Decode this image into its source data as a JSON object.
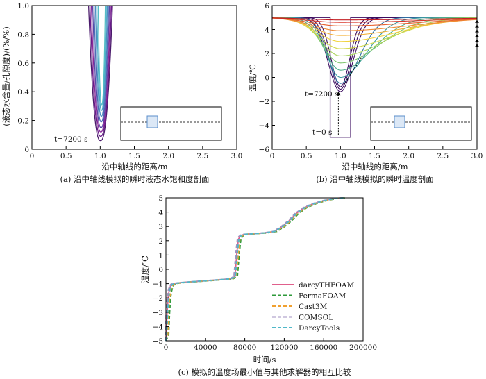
{
  "colors": {
    "sat_curves": [
      "#4a1a6b",
      "#6a1a8a",
      "#8a2a99",
      "#5a4aa8",
      "#4e6cb6",
      "#4a90c2",
      "#48a9c6",
      "#54bdc5"
    ],
    "temp_early": "#3a0a5e",
    "temp_mid": [
      "#2d6fa3",
      "#3a9aa0",
      "#4fb08a",
      "#7cc46a",
      "#a8d25a",
      "#d2d84a"
    ],
    "temp_late": [
      "#f0d23c",
      "#f4b23a",
      "#f08a34",
      "#e8602e",
      "#d8362a",
      "#c21f23"
    ],
    "arrow": "#000000",
    "inset_box": "#000000",
    "inset_square": "#5a8ecb",
    "darcyTHFOAM": "#e0608c",
    "PermaFOAM": "#2e9a3a",
    "Cast3M": "#f0a030",
    "COMSOL": "#a090c0",
    "DarcyTools": "#50b8c8"
  },
  "chart_data": [
    {
      "id": "a",
      "type": "line",
      "caption": "(a) 沿中轴线模拟的瞬时液态水饱和度剖面",
      "xlabel": "沿中轴线的距离/m",
      "ylabel": "(液态水含量/孔隙度)/(%/%)",
      "xlim": [
        0,
        3.0
      ],
      "ylim": [
        0,
        1.0
      ],
      "xticks": [
        0,
        0.5,
        1.0,
        1.5,
        2.0,
        2.5,
        3.0
      ],
      "xtick_labels": [
        "0",
        "0.5",
        "1.0",
        "1.5",
        "2.0",
        "2.5",
        "3.0"
      ],
      "yticks": [
        0,
        0.2,
        0.4,
        0.6,
        0.8,
        1.0
      ],
      "ytick_labels": [
        "0",
        "0.2",
        "0.4",
        "0.6",
        "0.8",
        "1.0"
      ],
      "annotation": "t=7200 s",
      "series_minima": [
        0.06,
        0.09,
        0.12,
        0.15,
        0.19,
        0.23,
        0.27,
        0.31
      ],
      "inset": true
    },
    {
      "id": "b",
      "type": "line",
      "caption": "(b) 沿中轴线模拟的瞬时温度剖面",
      "xlabel": "沿中轴线的距离/m",
      "ylabel": "温度/℃",
      "xlim": [
        0,
        3.0
      ],
      "ylim": [
        -6,
        6
      ],
      "xticks": [
        0,
        0.5,
        1.0,
        1.5,
        2.0,
        2.5,
        3.0
      ],
      "xtick_labels": [
        "0",
        "0.5",
        "1.0",
        "1.5",
        "2.0",
        "2.5",
        "3.0"
      ],
      "yticks": [
        -6,
        -4,
        -2,
        0,
        2,
        4,
        6
      ],
      "ytick_labels": [
        "−6",
        "−4",
        "−2",
        "0",
        "2",
        "4",
        "6"
      ],
      "annotations": [
        "t=7200 s",
        "t=0 s"
      ],
      "initial_profile": {
        "x": [
          0,
          0.85,
          0.85,
          1.15,
          1.15,
          3.0
        ],
        "y": [
          5,
          5,
          -5,
          -5,
          5,
          5
        ]
      },
      "early_minima": [
        -0.8,
        -1.0,
        -1.2
      ],
      "late_minima": [
        -0.5,
        0.0,
        0.6,
        1.2,
        1.8,
        2.4,
        3.0,
        3.5,
        3.9,
        4.3,
        4.6,
        4.8
      ],
      "inset": true
    },
    {
      "id": "c",
      "type": "line",
      "caption": "(c) 模拟的温度场最小值与其他求解器的相互比较",
      "xlabel": "时间/s",
      "ylabel": "温度/℃",
      "xlim": [
        0,
        200000
      ],
      "ylim": [
        -5,
        5
      ],
      "xticks": [
        0,
        40000,
        80000,
        120000,
        160000,
        200000
      ],
      "xtick_labels": [
        "0",
        "40000",
        "80000",
        "120000",
        "160000",
        "200000"
      ],
      "yticks": [
        -5,
        -4,
        -3,
        -2,
        -1,
        0,
        1,
        2,
        3,
        4,
        5
      ],
      "ytick_labels": [
        "−5",
        "−4",
        "−3",
        "−2",
        "−1",
        "0",
        "1",
        "2",
        "3",
        "4",
        "5"
      ],
      "legend_position": "lower-right",
      "x": [
        0,
        300,
        700,
        1200,
        2000,
        3000,
        4500,
        6000,
        8000,
        12000,
        20000,
        30000,
        40000,
        50000,
        60000,
        66000,
        70000,
        72000,
        73500,
        75000,
        77000,
        80000,
        90000,
        100000,
        110000,
        118000,
        125000,
        132000,
        140000,
        150000,
        160000,
        170000,
        180000
      ],
      "series": [
        {
          "name": "darcyTHFOAM",
          "style": "solid",
          "values": [
            -5,
            -4.6,
            -3.9,
            -3.1,
            -2.2,
            -1.6,
            -1.2,
            -1.05,
            -1.0,
            -0.95,
            -0.9,
            -0.85,
            -0.8,
            -0.75,
            -0.7,
            -0.65,
            -0.5,
            1.2,
            2.1,
            2.3,
            2.4,
            2.45,
            2.5,
            2.55,
            2.65,
            3.0,
            3.4,
            3.9,
            4.3,
            4.6,
            4.8,
            4.95,
            5.0
          ],
          "shift": 0
        },
        {
          "name": "PermaFOAM",
          "style": "dashed",
          "values": [
            -5,
            -4.6,
            -3.9,
            -3.1,
            -2.2,
            -1.6,
            -1.2,
            -1.05,
            -1.0,
            -0.95,
            -0.9,
            -0.85,
            -0.8,
            -0.75,
            -0.7,
            -0.65,
            -0.5,
            1.2,
            2.1,
            2.3,
            2.4,
            2.45,
            2.5,
            2.55,
            2.65,
            3.0,
            3.4,
            3.9,
            4.3,
            4.6,
            4.8,
            4.95,
            5.0
          ],
          "shift": 2500
        },
        {
          "name": "Cast3M",
          "style": "dashed",
          "values": [
            -5,
            -4.6,
            -3.9,
            -3.1,
            -2.2,
            -1.6,
            -1.2,
            -1.05,
            -1.0,
            -0.95,
            -0.9,
            -0.85,
            -0.8,
            -0.75,
            -0.7,
            -0.65,
            -0.5,
            1.2,
            2.1,
            2.3,
            2.4,
            2.45,
            2.5,
            2.55,
            2.65,
            3.0,
            3.4,
            3.9,
            4.3,
            4.6,
            4.8,
            4.95,
            5.0
          ],
          "shift": 1500
        },
        {
          "name": "COMSOL",
          "style": "dashed",
          "values": [
            -5,
            -4.6,
            -3.9,
            -3.1,
            -2.2,
            -1.6,
            -1.2,
            -1.05,
            -1.0,
            -0.95,
            -0.9,
            -0.85,
            -0.8,
            -0.75,
            -0.7,
            -0.65,
            -0.5,
            1.2,
            2.1,
            2.3,
            2.4,
            2.45,
            2.5,
            2.55,
            2.65,
            3.0,
            3.4,
            3.9,
            4.3,
            4.6,
            4.8,
            4.95,
            5.0
          ],
          "shift": -1000
        },
        {
          "name": "DarcyTools",
          "style": "dashed",
          "values": [
            -5,
            -4.6,
            -3.9,
            -3.1,
            -2.2,
            -1.6,
            -1.2,
            -1.05,
            -1.0,
            -0.95,
            -0.9,
            -0.85,
            -0.8,
            -0.75,
            -0.7,
            -0.65,
            -0.5,
            1.2,
            2.1,
            2.3,
            2.4,
            2.45,
            2.5,
            2.55,
            2.65,
            3.0,
            3.4,
            3.9,
            4.3,
            4.6,
            4.8,
            4.95,
            5.0
          ],
          "shift": 500
        }
      ]
    }
  ]
}
